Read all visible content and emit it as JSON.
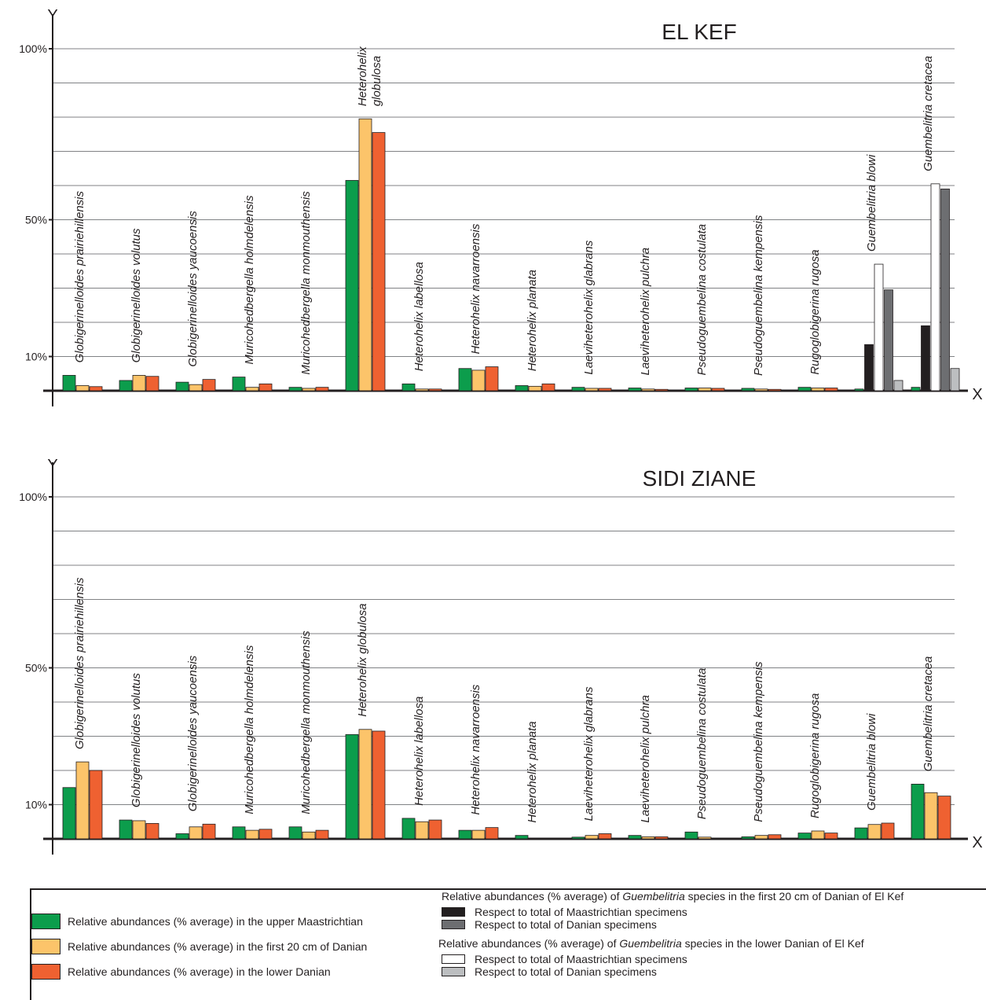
{
  "colors": {
    "maastrichtian": "#0c9d4c",
    "danian_first20": "#fcc46a",
    "lower_danian": "#ef6131",
    "gue_maas_first20": "#231f20",
    "gue_danian_first20": "#6d6e71",
    "gue_maas_lower": "#ffffff",
    "gue_danian_lower": "#bcbec0",
    "grid": "#808285",
    "axis": "#231f20"
  },
  "chart_data": [
    {
      "type": "bar",
      "title": "EL KEF",
      "xlabel": "X",
      "ylabel": "Y",
      "y_tick_labels": [
        {
          "value": 10,
          "label": "10%"
        },
        {
          "value": 50,
          "label": "50%"
        },
        {
          "value": 100,
          "label": "100%"
        }
      ],
      "ylim": [
        0,
        100
      ],
      "grid": true,
      "categories": [
        "Globigerinelloides prairiehillensis",
        "Globigerinelloides volutus",
        "Globigerinelloides yaucoensis",
        "Muricohedbergella holmdelensis",
        "Muricohedbergella monmouthensis",
        "Heterohelix globulosa",
        "Heterohelix labellosa",
        "Heterohelix navarroensis",
        "Heterohelix planata",
        "Laeviheterohelix glabrans",
        "Laeviheterohelix pulchra",
        "Pseudoguembelina costulata",
        "Pseudoguembelina kempensis",
        "Rugoglobigerina rugosa",
        "Guembelitria blowi",
        "Guembelitria cretacea"
      ],
      "category_label_lines": [
        [
          "Globigerinelloides prairiehillensis"
        ],
        [
          "Globigerinelloides volutus"
        ],
        [
          "Globigerinelloides yaucoensis"
        ],
        [
          "Muricohedbergella holmdelensis"
        ],
        [
          "Muricohedbergella monmouthensis"
        ],
        [
          "Heterohelix",
          "globulosa"
        ],
        [
          "Heterohelix labellosa"
        ],
        [
          "Heterohelix navarroensis"
        ],
        [
          "Heterohelix planata"
        ],
        [
          "Laeviheterohelix glabrans"
        ],
        [
          "Laeviheterohelix pulchra"
        ],
        [
          "Pseudoguembelina costulata"
        ],
        [
          "Pseudoguembelina kempensis"
        ],
        [
          "Rugoglobigerina rugosa"
        ],
        [
          "Guembelitria blowi"
        ],
        [
          "Guembelitria cretacea"
        ]
      ],
      "series": [
        {
          "key": "maastrichtian",
          "values": [
            4.5,
            3,
            2.5,
            4,
            1,
            61.5,
            2,
            6.5,
            1.5,
            1,
            0.8,
            0.8,
            0.7,
            1,
            0.5,
            1
          ]
        },
        {
          "key": "danian_first20",
          "values": [
            1.5,
            4.5,
            1.8,
            1,
            0.7,
            79.5,
            0.5,
            6,
            1.3,
            0.7,
            0.5,
            0.8,
            0.5,
            0.8,
            null,
            null
          ]
        },
        {
          "key": "lower_danian",
          "values": [
            1.2,
            4.2,
            3.3,
            2,
            1,
            75.5,
            0.5,
            7,
            2,
            0.7,
            0.4,
            0.7,
            0.4,
            0.8,
            null,
            null
          ]
        }
      ],
      "guembelitria_series": [
        {
          "key": "gue_maas_first20",
          "values": {
            "Guembelitria blowi": 13.5,
            "Guembelitria cretacea": 19
          }
        },
        {
          "key": "gue_maas_lower",
          "values": {
            "Guembelitria blowi": 37,
            "Guembelitria cretacea": 60.5
          }
        },
        {
          "key": "gue_danian_first20",
          "values": {
            "Guembelitria blowi": 29.5,
            "Guembelitria cretacea": 59
          }
        },
        {
          "key": "gue_danian_lower",
          "values": {
            "Guembelitria blowi": 3,
            "Guembelitria cretacea": 6.5
          }
        }
      ]
    },
    {
      "type": "bar",
      "title": "SIDI ZIANE",
      "xlabel": "X",
      "ylabel": "Y",
      "y_tick_labels": [
        {
          "value": 10,
          "label": "10%"
        },
        {
          "value": 50,
          "label": "50%"
        },
        {
          "value": 100,
          "label": "100%"
        }
      ],
      "ylim": [
        0,
        100
      ],
      "grid": true,
      "categories": [
        "Globigerinelloides prairiehillensis",
        "Globigerinelloides volutus",
        "Globigerinelloides yaucoensis",
        "Muricohedbergella holmdelensis",
        "Muricohedbergella monmouthensis",
        "Heterohelix globulosa",
        "Heterohelix labellosa",
        "Heterohelix navarroensis",
        "Heterohelix planata",
        "Laeviheterohelix glabrans",
        "Laeviheterohelix pulchra",
        "Pseudoguembelina costulata",
        "Pseudoguembelina kempensis",
        "Rugoglobigerina rugosa",
        "Guembelitria blowi",
        "Guembelitria cretacea"
      ],
      "category_label_lines": [
        [
          "Globigerinelloides prairiehillensis"
        ],
        [
          "Globigerinelloides volutus"
        ],
        [
          "Globigerinelloides yaucoensis"
        ],
        [
          "Muricohedbergella holmdelensis"
        ],
        [
          "Muricohedbergella monmouthensis"
        ],
        [
          "Heterohelix globulosa"
        ],
        [
          "Heterohelix labellosa"
        ],
        [
          "Heterohelix navarroensis"
        ],
        [
          "Heterohelix planata"
        ],
        [
          "Laeviheterohelix glabrans"
        ],
        [
          "Laeviheterohelix pulchra"
        ],
        [
          "Pseudoguembelina costulata"
        ],
        [
          "Pseudoguembelina kempensis"
        ],
        [
          "Rugoglobigerina rugosa"
        ],
        [
          "Guembelitria blowi"
        ],
        [
          "Guembelitria cretacea"
        ]
      ],
      "series": [
        {
          "key": "maastrichtian",
          "values": [
            15,
            5.5,
            1.5,
            3.5,
            3.5,
            30.5,
            6,
            2.5,
            1,
            0.5,
            1,
            2,
            0.6,
            1.7,
            3.2,
            16
          ]
        },
        {
          "key": "danian_first20",
          "values": [
            22.5,
            5.3,
            3.5,
            2.5,
            2,
            32,
            5,
            2.5,
            0,
            1,
            0.6,
            0.5,
            1,
            2.3,
            4.2,
            13.5
          ]
        },
        {
          "key": "lower_danian",
          "values": [
            20,
            4.5,
            4.3,
            2.8,
            2.5,
            31.5,
            5.5,
            3.3,
            0,
            1.5,
            0.6,
            0,
            1.2,
            1.7,
            4.6,
            12.5
          ]
        }
      ]
    }
  ],
  "legend": {
    "left_items": [
      {
        "key": "maastrichtian",
        "label": "Relative abundances (% average) in the upper Maastrichtian"
      },
      {
        "key": "danian_first20",
        "label": "Relative abundances (% average) in the first 20 cm of Danian"
      },
      {
        "key": "lower_danian",
        "label": "Relative abundances (% average) in the lower Danian"
      }
    ],
    "group1_heading": {
      "pre": "Relative abundances (% average) of ",
      "genus": "Guembelitria",
      "post": " species in the first 20 cm of Danian of El Kef"
    },
    "group1_items": [
      {
        "key": "gue_maas_first20",
        "label": "Respect to total of Maastrichtian specimens"
      },
      {
        "key": "gue_danian_first20",
        "label": "Respect to total of Danian specimens"
      }
    ],
    "group2_heading": {
      "pre": "Relative abundances (% average) of ",
      "genus": "Guembelitria",
      "post": " species in the lower Danian of El Kef"
    },
    "group2_items": [
      {
        "key": "gue_maas_lower",
        "label": "Respect to total of Maastrichtian specimens"
      },
      {
        "key": "gue_danian_lower",
        "label": "Respect to total of Danian specimens"
      }
    ]
  }
}
